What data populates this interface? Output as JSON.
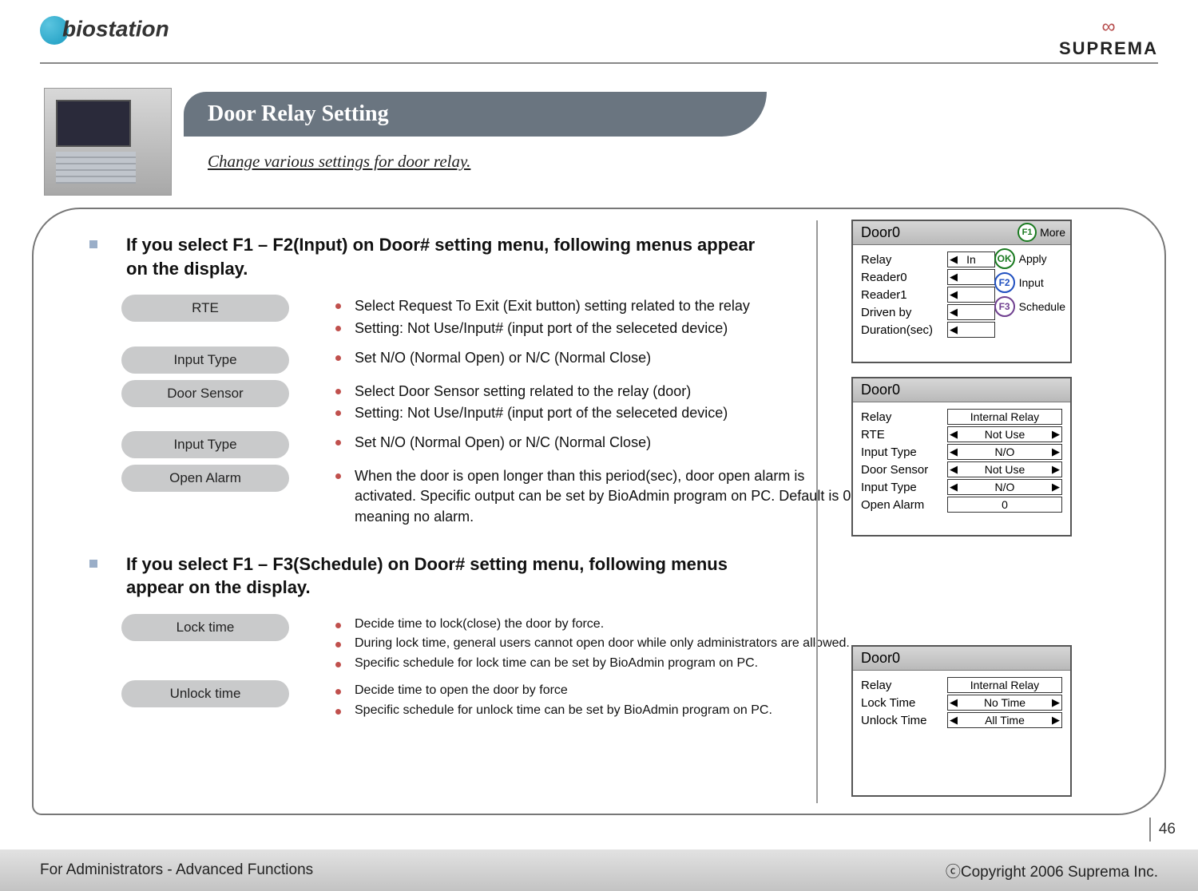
{
  "logo_left": "biostation",
  "logo_right": "SUPREMA",
  "title": "Door Relay Setting",
  "subtitle": "Change various settings for door relay.",
  "section1_head": "If you select F1 – F2(Input) on Door# setting menu, following menus appear on the display.",
  "section2_head": "If you select F1 – F3(Schedule) on Door# setting menu, following menus appear on the display.",
  "rows1": [
    {
      "pill": "RTE",
      "items": [
        "Select Request To Exit (Exit button) setting related to the relay",
        "Setting: Not Use/Input#  (input port of the seleceted device)"
      ]
    },
    {
      "pill": "Input Type",
      "items": [
        "Set N/O (Normal Open) or N/C (Normal Close)"
      ]
    },
    {
      "pill": "Door Sensor",
      "items": [
        "Select Door Sensor setting related to the relay (door)",
        "Setting: Not Use/Input# (input port of the seleceted device)"
      ]
    },
    {
      "pill": "Input Type",
      "items": [
        "Set N/O (Normal Open) or N/C (Normal Close)"
      ]
    },
    {
      "pill": "Open Alarm",
      "items": [
        "When the door is open longer than this period(sec), door open alarm is activated. Specific output can be set by BioAdmin program on PC. Default is 0 meaning no alarm."
      ]
    }
  ],
  "rows2": [
    {
      "pill": "Lock time",
      "items": [
        "Decide time to lock(close) the door by force.",
        "During lock time, general users cannot open door while only administrators are allowed.",
        "Specific schedule for lock time can be set by BioAdmin program on PC."
      ]
    },
    {
      "pill": "Unlock time",
      "items": [
        "Decide time to open the door by force",
        "Specific schedule for unlock time can be set by BioAdmin program on PC."
      ]
    }
  ],
  "lcd1": {
    "title": "Door0",
    "more": "More",
    "fields": [
      "Relay",
      "Reader0",
      "Reader1",
      "Driven by",
      "Duration(sec)"
    ],
    "btns": {
      "ok": "Apply",
      "f2": "Input",
      "f3": "Schedule"
    }
  },
  "lcd2": {
    "title": "Door0",
    "rows": [
      {
        "lbl": "Relay",
        "val": "Internal Relay",
        "arrows": false
      },
      {
        "lbl": "RTE",
        "val": "Not Use",
        "arrows": true
      },
      {
        "lbl": "Input Type",
        "val": "N/O",
        "arrows": true
      },
      {
        "lbl": "Door Sensor",
        "val": "Not Use",
        "arrows": true
      },
      {
        "lbl": "Input Type",
        "val": "N/O",
        "arrows": true
      },
      {
        "lbl": "Open Alarm",
        "val": "0",
        "arrows": false
      }
    ]
  },
  "lcd3": {
    "title": "Door0",
    "rows": [
      {
        "lbl": "Relay",
        "val": "Internal Relay",
        "arrows": false
      },
      {
        "lbl": "Lock Time",
        "val": "No Time",
        "arrows": true
      },
      {
        "lbl": "Unlock Time",
        "val": "All Time",
        "arrows": true
      }
    ]
  },
  "page_num": "46",
  "footer_left": "For Administrators - Advanced Functions",
  "footer_right": "ⓒCopyright 2006 Suprema Inc."
}
